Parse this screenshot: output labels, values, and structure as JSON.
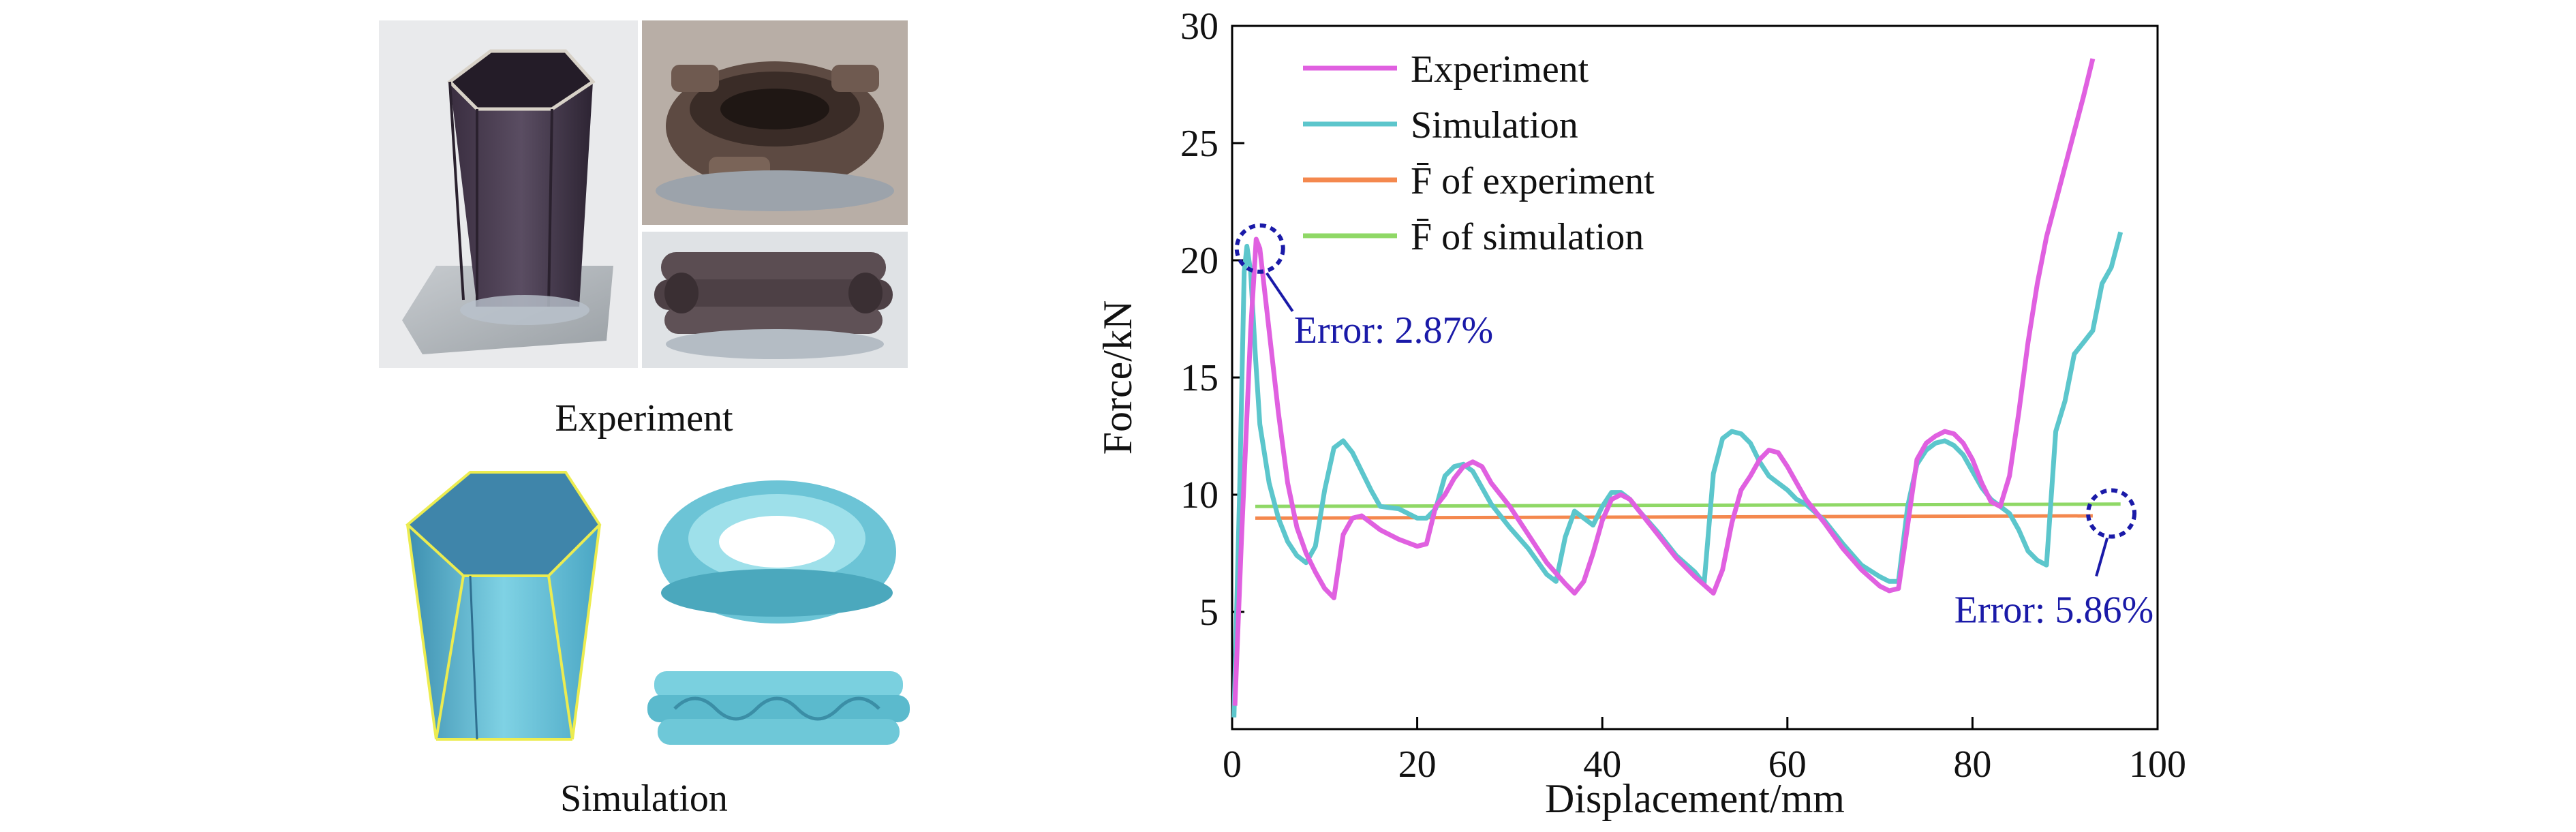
{
  "panels": {
    "experiment_label": "Experiment",
    "simulation_label": "Simulation"
  },
  "chart_data": {
    "type": "line",
    "xlabel": "Displacement/mm",
    "ylabel": "Force/kN",
    "xlim": [
      0,
      100
    ],
    "ylim": [
      0,
      30
    ],
    "xticks": [
      0,
      20,
      40,
      60,
      80,
      100
    ],
    "yticks": [
      5,
      10,
      15,
      20,
      25,
      30
    ],
    "ytick_labels": [
      "5",
      "10",
      "15",
      "20",
      "25",
      "30"
    ],
    "xtick_labels": [
      "0",
      "20",
      "40",
      "60",
      "80",
      "100"
    ],
    "legend_position": "top-left",
    "series": [
      {
        "name": "Experiment",
        "color": "#e060e0",
        "x": [
          0.3,
          1,
          2,
          2.6,
          3,
          4,
          5,
          6,
          7,
          8,
          9,
          10,
          11,
          12,
          13,
          14,
          16,
          18,
          20,
          21,
          22,
          23,
          24,
          25,
          26,
          27,
          28,
          30,
          32,
          34,
          36,
          37,
          38,
          39,
          40,
          41,
          42,
          43,
          44,
          46,
          48,
          50,
          52,
          53,
          54,
          55,
          56,
          57,
          58,
          59,
          60,
          61,
          62,
          64,
          66,
          68,
          70,
          71,
          72,
          73,
          74,
          75,
          76,
          77,
          78,
          79,
          80,
          81,
          82,
          83,
          84,
          85,
          86,
          87,
          88,
          89,
          90,
          91,
          92,
          93
        ],
        "y": [
          1,
          8,
          17,
          20.9,
          20.5,
          17,
          13.5,
          10.5,
          8.6,
          7.5,
          6.7,
          6,
          5.6,
          8.3,
          9,
          9.1,
          8.5,
          8.1,
          7.8,
          7.9,
          9.5,
          10,
          10.7,
          11.2,
          11.4,
          11.2,
          10.5,
          9.5,
          8.3,
          7.1,
          6.2,
          5.8,
          6.3,
          7.5,
          8.9,
          9.8,
          10,
          9.8,
          9.3,
          8.3,
          7.3,
          6.5,
          5.8,
          6.8,
          8.8,
          10.2,
          10.8,
          11.5,
          11.9,
          11.8,
          11.2,
          10.5,
          9.8,
          8.8,
          7.7,
          6.8,
          6.1,
          5.9,
          6,
          8.7,
          11.5,
          12.2,
          12.5,
          12.7,
          12.6,
          12.2,
          11.5,
          10.5,
          9.7,
          9.5,
          10.8,
          13.5,
          16.5,
          19,
          21,
          22.5,
          24,
          25.5,
          27,
          28.6
        ]
      },
      {
        "name": "Simulation",
        "color": "#5cc6cc",
        "x": [
          0.2,
          0.8,
          1.3,
          1.6,
          2,
          2.5,
          3,
          4,
          5,
          6,
          7,
          8,
          9,
          10,
          11,
          12,
          13,
          14,
          15,
          16,
          18,
          20,
          21,
          22,
          23,
          24,
          25,
          26,
          27,
          28,
          30,
          32,
          34,
          35,
          36,
          37,
          38,
          39,
          40,
          41,
          42,
          43,
          44,
          46,
          48,
          50,
          51,
          52,
          53,
          54,
          55,
          56,
          57,
          58,
          59,
          60,
          61,
          62,
          64,
          66,
          68,
          70,
          71,
          72,
          73,
          74,
          75,
          76,
          77,
          78,
          79,
          80,
          81,
          82,
          83,
          84,
          85,
          86,
          87,
          88,
          89,
          90,
          91,
          92,
          93,
          94,
          95,
          96
        ],
        "y": [
          0.5,
          10,
          19.5,
          20.6,
          19.5,
          16,
          13,
          10.5,
          9,
          8,
          7.4,
          7.1,
          7.8,
          10.2,
          12,
          12.3,
          11.8,
          11,
          10.2,
          9.5,
          9.4,
          9,
          9,
          9.4,
          10.8,
          11.2,
          11.3,
          11,
          10.3,
          9.6,
          8.6,
          7.7,
          6.6,
          6.3,
          8.2,
          9.3,
          9,
          8.7,
          9.5,
          10.1,
          10.1,
          9.8,
          9.3,
          8.4,
          7.4,
          6.7,
          6.2,
          10.9,
          12.4,
          12.7,
          12.6,
          12.2,
          11.4,
          10.8,
          10.5,
          10.2,
          9.8,
          9.6,
          8.9,
          7.9,
          7,
          6.5,
          6.3,
          6.3,
          9.5,
          11.3,
          11.9,
          12.2,
          12.3,
          12.1,
          11.7,
          11,
          10.3,
          9.8,
          9.5,
          9.2,
          8.5,
          7.6,
          7.2,
          7,
          12.7,
          14,
          16,
          16.5,
          17,
          19,
          19.7,
          21.2
        ]
      },
      {
        "name": "F̄ of experiment",
        "color": "#f4884e",
        "x": [
          2.5,
          93
        ],
        "y": [
          9,
          9.1
        ]
      },
      {
        "name": "F̄ of simulation",
        "color": "#8fd866",
        "x": [
          2.5,
          96
        ],
        "y": [
          9.5,
          9.6
        ]
      }
    ],
    "annotations": [
      {
        "text": "Error: 2.87%",
        "x": 3,
        "y": 20.5
      },
      {
        "text": "Error: 5.86%",
        "x": 95,
        "y": 9.2
      }
    ]
  }
}
